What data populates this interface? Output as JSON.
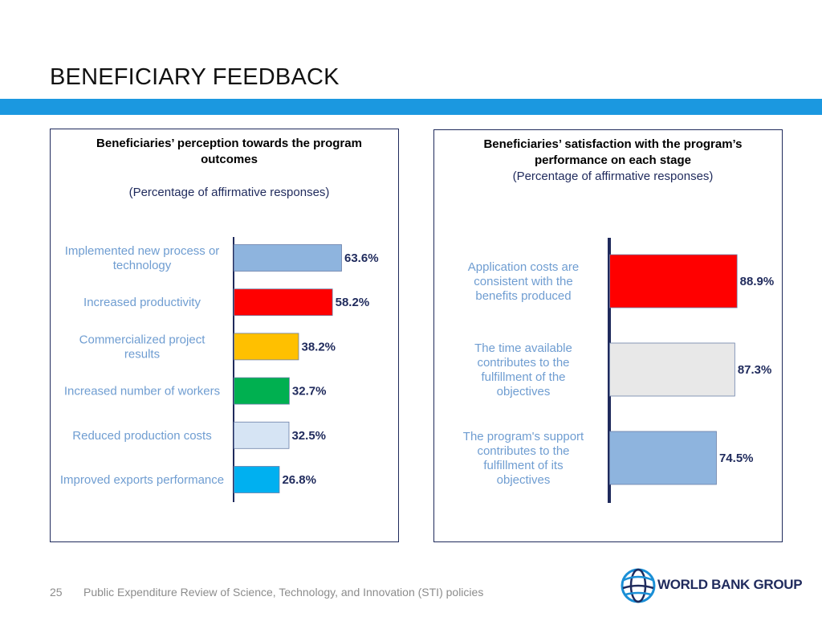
{
  "slide": {
    "title": "BENEFICIARY FEEDBACK",
    "accent_color": "#1b98e0",
    "page_number": "25",
    "footer_text": "Public Expenditure Review of Science, Technology, and Innovation (STI) policies",
    "logo_text": "WORLD BANK GROUP",
    "logo_icon": "globe-icon"
  },
  "chart_data": [
    {
      "type": "bar",
      "orientation": "horizontal",
      "title": "Beneficiaries’ perception towards the program outcomes",
      "subtitle": "(Percentage of affirmative responses)",
      "categories": [
        "Implemented new process or technology",
        "Increased productivity",
        "Commercialized project results",
        "Increased number of workers",
        "Reduced production costs",
        "Improved exports performance"
      ],
      "values": [
        63.6,
        58.2,
        38.2,
        32.7,
        32.5,
        26.8
      ],
      "data_labels": [
        "63.6%",
        "58.2%",
        "38.2%",
        "32.7%",
        "32.5%",
        "26.8%"
      ],
      "colors": [
        "#8eb4de",
        "#ff0000",
        "#ffc000",
        "#00b050",
        "#d6e4f4",
        "#00b0f0"
      ],
      "xlim": [
        0,
        100
      ],
      "grid": false,
      "legend": "none"
    },
    {
      "type": "bar",
      "orientation": "horizontal",
      "title": "Beneficiaries’ satisfaction with the program’s performance on each stage",
      "subtitle": "(Percentage of affirmative responses)",
      "categories": [
        "Application costs are consistent with the benefits produced",
        "The time available contributes to the fulfillment of the objectives",
        "The program's support contributes to the fulfillment of its objectives"
      ],
      "values": [
        88.9,
        87.3,
        74.5
      ],
      "data_labels": [
        "88.9%",
        "87.3%",
        "74.5%"
      ],
      "colors": [
        "#ff0000",
        "#e8e8e8",
        "#8eb4de"
      ],
      "xlim": [
        0,
        100
      ],
      "grid": false,
      "legend": "none"
    }
  ]
}
